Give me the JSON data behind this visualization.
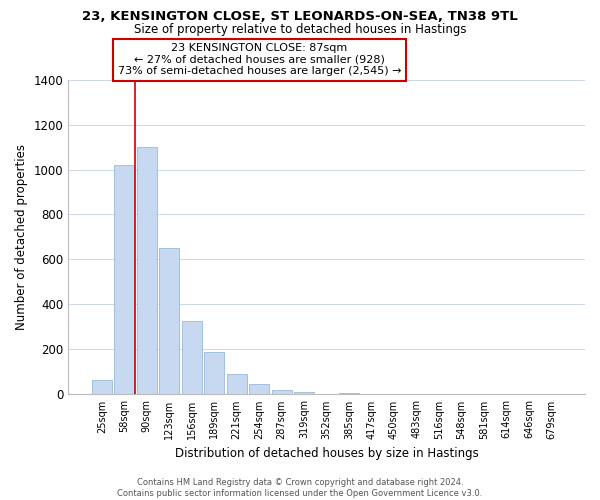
{
  "title1": "23, KENSINGTON CLOSE, ST LEONARDS-ON-SEA, TN38 9TL",
  "title2": "Size of property relative to detached houses in Hastings",
  "xlabel": "Distribution of detached houses by size in Hastings",
  "ylabel": "Number of detached properties",
  "bar_labels": [
    "25sqm",
    "58sqm",
    "90sqm",
    "123sqm",
    "156sqm",
    "189sqm",
    "221sqm",
    "254sqm",
    "287sqm",
    "319sqm",
    "352sqm",
    "385sqm",
    "417sqm",
    "450sqm",
    "483sqm",
    "516sqm",
    "548sqm",
    "581sqm",
    "614sqm",
    "646sqm",
    "679sqm"
  ],
  "bar_values": [
    65,
    1020,
    1100,
    650,
    325,
    190,
    90,
    48,
    20,
    10,
    3,
    8,
    0,
    0,
    0,
    0,
    0,
    0,
    0,
    0,
    0
  ],
  "bar_color": "#c6d9f0",
  "bar_edge_color": "#9ab8d8",
  "highlight_line_color": "#cc0000",
  "annotation_title": "23 KENSINGTON CLOSE: 87sqm",
  "annotation_line1": "← 27% of detached houses are smaller (928)",
  "annotation_line2": "73% of semi-detached houses are larger (2,545) →",
  "annotation_box_color": "#ffffff",
  "annotation_box_edge_color": "#cc0000",
  "ylim": [
    0,
    1400
  ],
  "yticks": [
    0,
    200,
    400,
    600,
    800,
    1000,
    1200,
    1400
  ],
  "footer_line1": "Contains HM Land Registry data © Crown copyright and database right 2024.",
  "footer_line2": "Contains public sector information licensed under the Open Government Licence v3.0.",
  "background_color": "#ffffff",
  "grid_color": "#cdd8e8"
}
